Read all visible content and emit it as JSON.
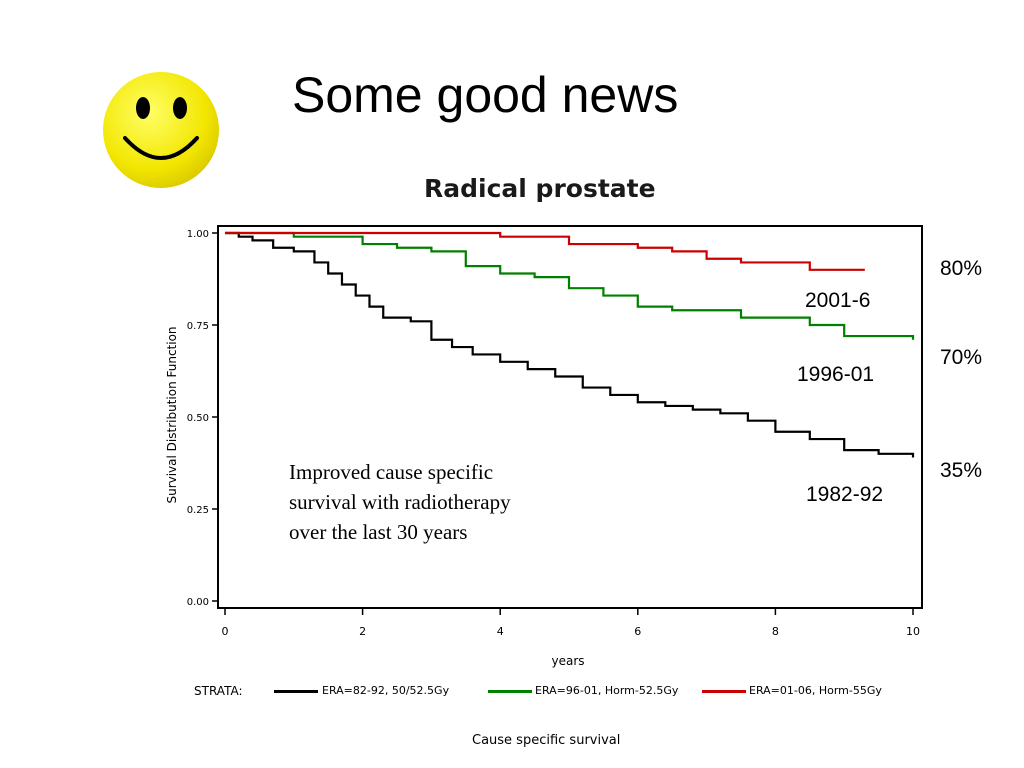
{
  "slide": {
    "title": "Some good news",
    "icon": "smiley-face-icon",
    "caption": "Cause specific survival"
  },
  "annotation_lines": [
    "Improved  cause specific",
    "survival with radiotherapy",
    "over the last 30 years"
  ],
  "percent_labels": [
    "80%",
    "70%",
    "35%"
  ],
  "chart_data": {
    "type": "line",
    "title": "Radical prostate",
    "xlabel": "years",
    "ylabel": "Survival Distribution Function",
    "xlim": [
      0,
      10
    ],
    "ylim": [
      0,
      1
    ],
    "x_ticks": [
      "0",
      "2",
      "4",
      "6",
      "8",
      "10"
    ],
    "y_ticks": [
      "0.00",
      "0.25",
      "0.50",
      "0.75",
      "1.00"
    ],
    "grid": false,
    "legend": {
      "title": "STRATA:",
      "placement": "bottom"
    },
    "series": [
      {
        "name": "ERA=82-92, 50/52.5Gy",
        "label": "1982-92",
        "color": "#000000",
        "x": [
          0,
          0.2,
          0.4,
          0.7,
          1.0,
          1.3,
          1.5,
          1.7,
          1.9,
          2.1,
          2.3,
          2.5,
          2.7,
          3.0,
          3.3,
          3.6,
          4.0,
          4.4,
          4.8,
          5.2,
          5.6,
          6.0,
          6.4,
          6.8,
          7.2,
          7.6,
          8.0,
          8.5,
          9.0,
          9.5,
          10.0
        ],
        "y": [
          1.0,
          0.99,
          0.98,
          0.96,
          0.95,
          0.92,
          0.89,
          0.86,
          0.83,
          0.8,
          0.77,
          0.77,
          0.76,
          0.71,
          0.69,
          0.67,
          0.65,
          0.63,
          0.61,
          0.58,
          0.56,
          0.54,
          0.53,
          0.52,
          0.51,
          0.49,
          0.46,
          0.44,
          0.41,
          0.4,
          0.39
        ]
      },
      {
        "name": "ERA=96-01, Horm-52.5Gy",
        "label": "1996-01",
        "color": "#008000",
        "x": [
          0,
          0.5,
          1.0,
          1.5,
          2.0,
          2.5,
          3.0,
          3.5,
          4.0,
          4.5,
          5.0,
          5.5,
          6.0,
          6.5,
          7.0,
          7.5,
          8.0,
          8.5,
          9.0,
          9.5,
          10.0
        ],
        "y": [
          1.0,
          1.0,
          0.99,
          0.99,
          0.97,
          0.96,
          0.95,
          0.91,
          0.89,
          0.88,
          0.85,
          0.83,
          0.8,
          0.79,
          0.79,
          0.77,
          0.77,
          0.75,
          0.72,
          0.72,
          0.71
        ]
      },
      {
        "name": "ERA=01-06, Horm-55Gy",
        "label": "2001-6",
        "color": "#cc0000",
        "x": [
          0,
          1.0,
          2.0,
          3.0,
          4.0,
          5.0,
          6.0,
          6.5,
          7.0,
          7.5,
          8.0,
          8.5,
          9.0,
          9.3
        ],
        "y": [
          1.0,
          1.0,
          1.0,
          1.0,
          0.99,
          0.97,
          0.96,
          0.95,
          0.93,
          0.92,
          0.92,
          0.9,
          0.9,
          0.9
        ]
      }
    ]
  }
}
